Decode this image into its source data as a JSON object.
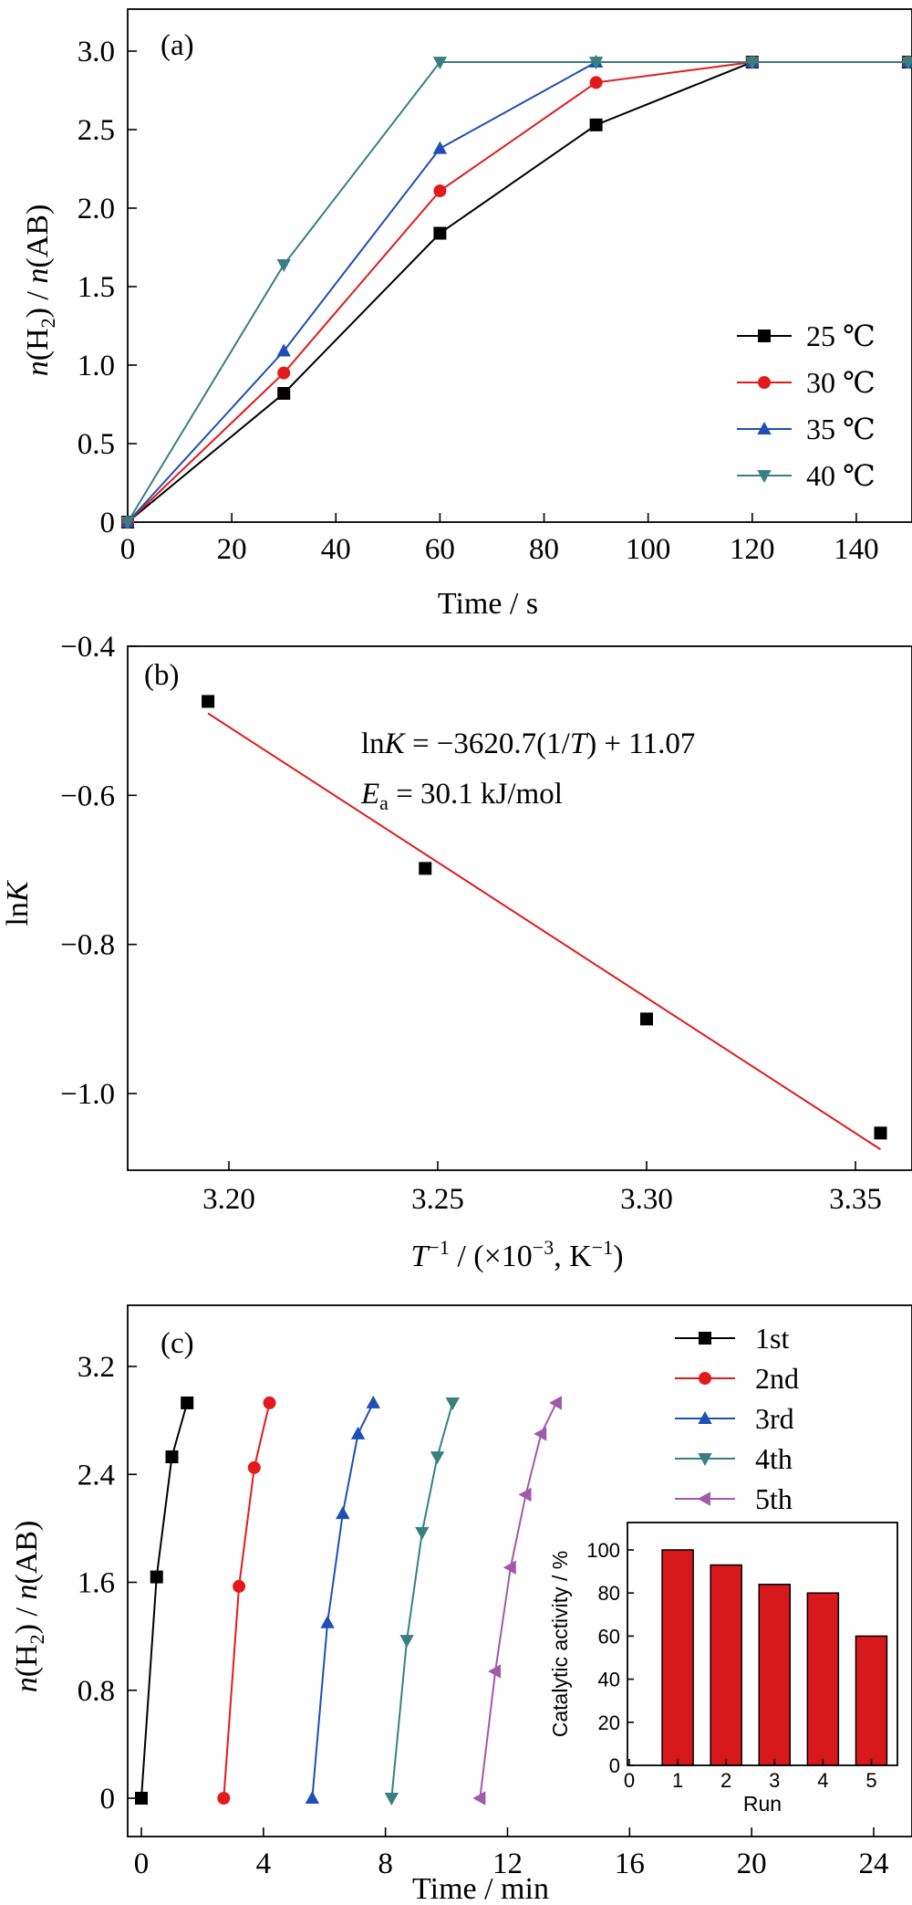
{
  "chart_data": [
    {
      "panel": "(a)",
      "type": "line",
      "xlabel": "Time / s",
      "ylabel": "n(H2) / n(AB)",
      "xlim": [
        0,
        150
      ],
      "ylim": [
        0,
        3.0
      ],
      "xticks": [
        "0",
        "20",
        "40",
        "60",
        "80",
        "100",
        "120",
        "140"
      ],
      "yticks": [
        "0",
        "0.5",
        "1.0",
        "1.5",
        "2.0",
        "2.5",
        "3.0"
      ],
      "legend_position": "right",
      "series": [
        {
          "name": "25 ℃",
          "color": "#000000",
          "marker": "square",
          "x": [
            0,
            30,
            60,
            90,
            120,
            150
          ],
          "y": [
            0,
            0.82,
            1.84,
            2.53,
            2.93,
            2.93
          ]
        },
        {
          "name": "30 ℃",
          "color": "#e31a1c",
          "marker": "circle",
          "x": [
            0,
            30,
            60,
            90,
            120,
            150
          ],
          "y": [
            0,
            0.95,
            2.11,
            2.8,
            2.93,
            2.93
          ]
        },
        {
          "name": "35 ℃",
          "color": "#1f4fb4",
          "marker": "triangle-up",
          "x": [
            0,
            30,
            60,
            90,
            120,
            150
          ],
          "y": [
            0,
            1.09,
            2.38,
            2.93,
            2.93,
            2.93
          ]
        },
        {
          "name": "40 ℃",
          "color": "#3a7f7f",
          "marker": "triangle-down",
          "x": [
            0,
            30,
            60,
            90,
            120,
            150
          ],
          "y": [
            0,
            1.64,
            2.93,
            2.93,
            2.93,
            2.93
          ]
        }
      ]
    },
    {
      "panel": "(b)",
      "type": "scatter",
      "xlabel": "T⁻¹ / (×10⁻³, K⁻¹)",
      "ylabel": "lnK",
      "xlim": [
        3.18,
        3.37
      ],
      "ylim": [
        -1.09,
        -0.4
      ],
      "xticks": [
        "3.20",
        "3.25",
        "3.30",
        "3.35"
      ],
      "yticks": [
        "−1.0",
        "−0.8",
        "−0.6",
        "−0.4"
      ],
      "points": {
        "color": "#000000",
        "marker": "square",
        "x": [
          3.195,
          3.247,
          3.3,
          3.356
        ],
        "y": [
          -0.474,
          -0.698,
          -0.9,
          -1.053
        ]
      },
      "fit": {
        "color": "#e31a1c",
        "x": [
          3.195,
          3.356
        ],
        "y": [
          -0.49,
          -1.075
        ]
      },
      "annotations": [
        "lnK = −3620.7(1/T) + 11.07",
        "Ea = 30.1 kJ/mol"
      ]
    },
    {
      "panel": "(c)",
      "type": "line",
      "xlabel": "Time / min",
      "ylabel": "n(H2) / n(AB)",
      "xlim": [
        -0.5,
        25
      ],
      "ylim": [
        -0.18,
        3.5
      ],
      "xticks": [
        "0",
        "4",
        "8",
        "12",
        "16",
        "20",
        "24"
      ],
      "yticks": [
        "0",
        "0.8",
        "1.6",
        "2.4",
        "3.2"
      ],
      "legend_position": "top-right",
      "series": [
        {
          "name": "1st",
          "color": "#000000",
          "marker": "square",
          "x": [
            0,
            0.5,
            1.0,
            1.5
          ],
          "y": [
            0,
            1.64,
            2.53,
            2.93
          ]
        },
        {
          "name": "2nd",
          "color": "#e31a1c",
          "marker": "circle",
          "x": [
            2.7,
            3.2,
            3.7,
            4.2
          ],
          "y": [
            0,
            1.57,
            2.45,
            2.93
          ]
        },
        {
          "name": "3rd",
          "color": "#1f4fb4",
          "marker": "triangle-up",
          "x": [
            5.6,
            6.1,
            6.6,
            7.1,
            7.6
          ],
          "y": [
            0,
            1.3,
            2.11,
            2.7,
            2.93
          ]
        },
        {
          "name": "4th",
          "color": "#3a7f7f",
          "marker": "triangle-down",
          "x": [
            8.2,
            8.7,
            9.2,
            9.7,
            10.2
          ],
          "y": [
            0,
            1.17,
            1.97,
            2.53,
            2.93
          ]
        },
        {
          "name": "5th",
          "color": "#a05aa8",
          "marker": "triangle-left",
          "x": [
            11.1,
            11.6,
            12.1,
            12.6,
            13.1,
            13.6
          ],
          "y": [
            0,
            0.94,
            1.71,
            2.25,
            2.7,
            2.93
          ]
        }
      ],
      "inset": {
        "type": "bar",
        "xlabel": "Run",
        "ylabel": "Catalytic activity / %",
        "categories": [
          "1",
          "2",
          "3",
          "4",
          "5"
        ],
        "values": [
          100,
          93,
          84,
          80,
          60
        ],
        "xlim": [
          0,
          5.5
        ],
        "ylim": [
          0,
          110
        ],
        "xticks": [
          "0",
          "1",
          "2",
          "3",
          "4",
          "5"
        ],
        "yticks": [
          "0",
          "20",
          "40",
          "60",
          "80",
          "100"
        ],
        "bar_color": "#d7191c"
      }
    }
  ]
}
